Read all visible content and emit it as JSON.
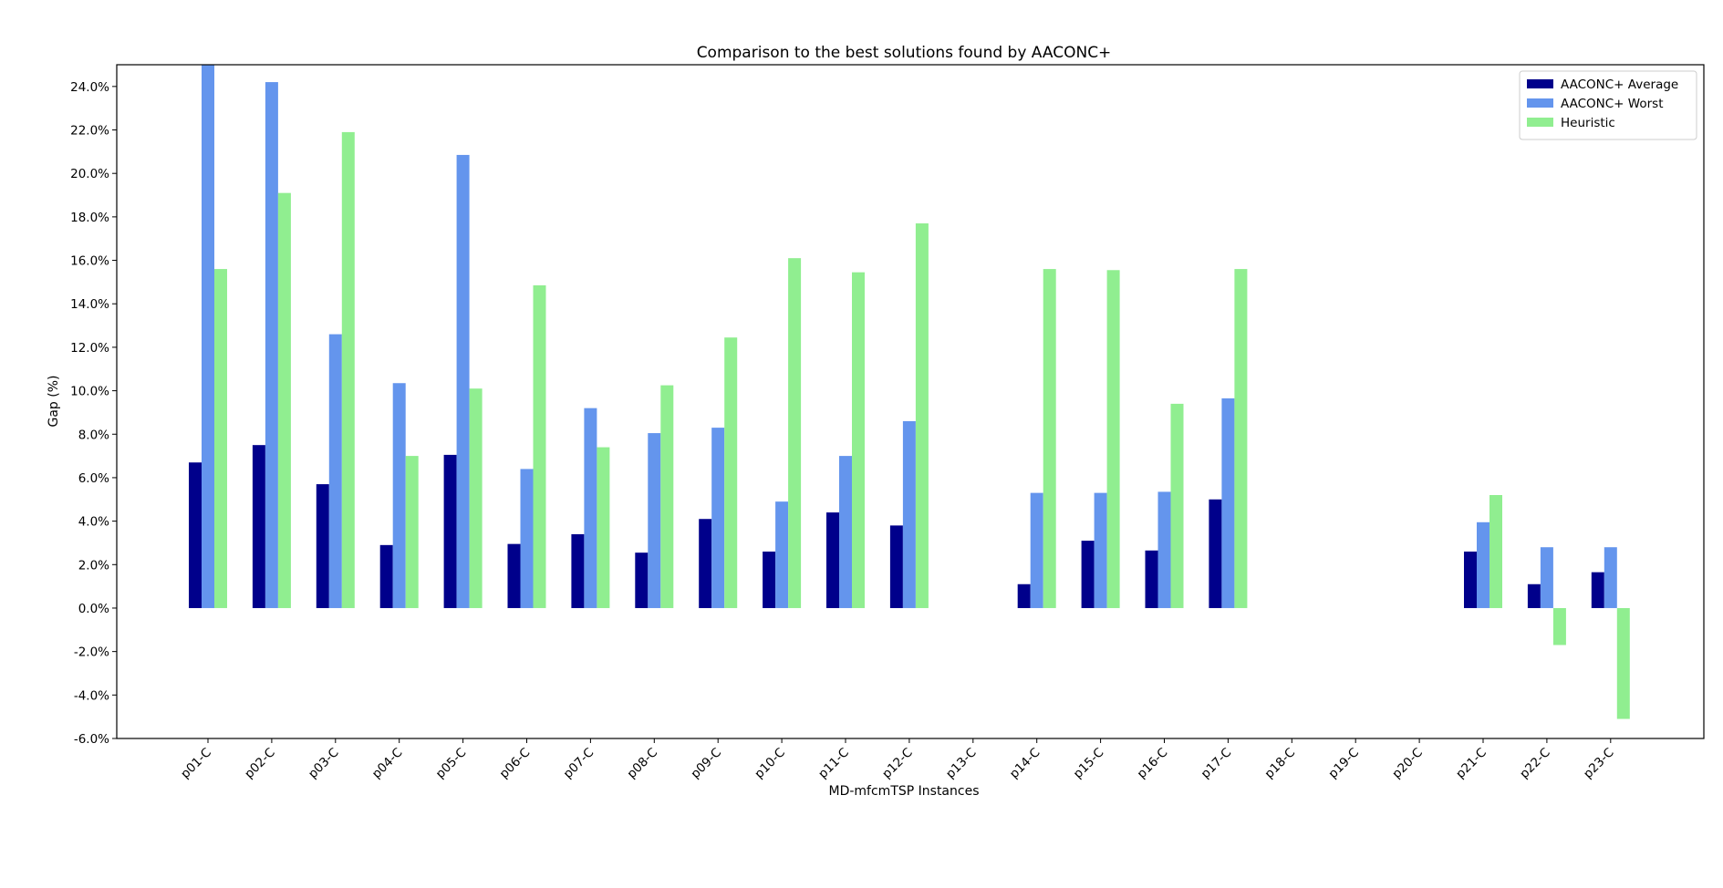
{
  "chart_data": {
    "type": "bar",
    "title": "Comparison to the best solutions found by AACONC+",
    "xlabel": "MD-mfcmTSP Instances",
    "ylabel": "Gap (%)",
    "ylim": [
      -6,
      25
    ],
    "yticks": [
      -6,
      -4,
      -2,
      0,
      2,
      4,
      6,
      8,
      10,
      12,
      14,
      16,
      18,
      20,
      22,
      24
    ],
    "ytick_labels": [
      "-6.0%",
      "-4.0%",
      "-2.0%",
      "0.0%",
      "2.0%",
      "4.0%",
      "6.0%",
      "8.0%",
      "10.0%",
      "12.0%",
      "14.0%",
      "16.0%",
      "18.0%",
      "20.0%",
      "22.0%",
      "24.0%"
    ],
    "grid": false,
    "legend_position": "top-right",
    "categories": [
      "p01-C",
      "p02-C",
      "p03-C",
      "p04-C",
      "p05-C",
      "p06-C",
      "p07-C",
      "p08-C",
      "p09-C",
      "p10-C",
      "p11-C",
      "p12-C",
      "p13-C",
      "p14-C",
      "p15-C",
      "p16-C",
      "p17-C",
      "p18-C",
      "p19-C",
      "p20-C",
      "p21-C",
      "p22-C",
      "p23-C"
    ],
    "series": [
      {
        "name": "AACONC+ Average",
        "color": "#00008b",
        "values": [
          6.7,
          7.5,
          5.7,
          2.9,
          7.05,
          2.95,
          3.4,
          2.55,
          4.1,
          2.6,
          4.4,
          3.8,
          0,
          1.1,
          3.1,
          2.65,
          5.0,
          0,
          0,
          0,
          2.6,
          1.1,
          1.65
        ]
      },
      {
        "name": "AACONC+ Worst",
        "color": "#6495ed",
        "values": [
          25.0,
          24.2,
          12.6,
          10.35,
          20.85,
          6.4,
          9.2,
          8.05,
          8.3,
          4.9,
          7.0,
          8.6,
          0,
          5.3,
          5.3,
          5.35,
          9.65,
          0,
          0,
          0,
          3.95,
          2.8,
          2.8
        ]
      },
      {
        "name": "Heuristic",
        "color": "#90ee90",
        "values": [
          15.6,
          19.1,
          21.9,
          7.0,
          10.1,
          14.85,
          7.4,
          10.25,
          12.45,
          16.1,
          15.45,
          17.7,
          0,
          15.6,
          15.55,
          9.4,
          15.6,
          0,
          0,
          0,
          5.2,
          -1.7,
          -5.1
        ]
      }
    ]
  }
}
